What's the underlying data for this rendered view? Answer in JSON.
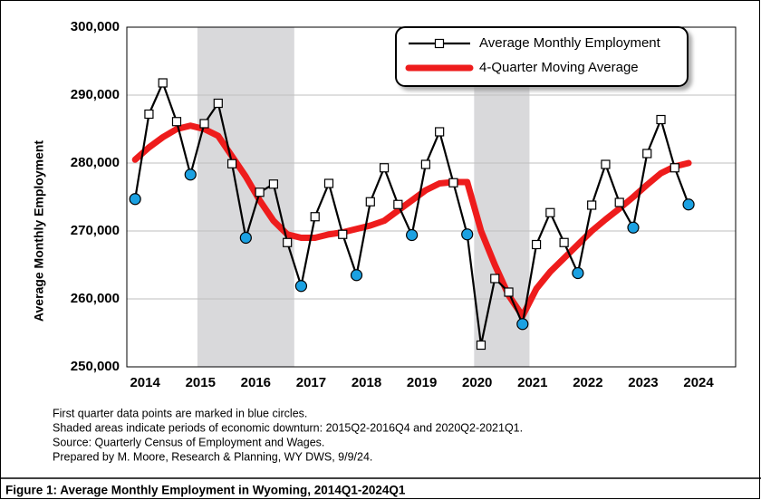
{
  "chart_data": {
    "type": "line",
    "caption": "Figure 1: Average Monthly Employment in Wyoming, 2014Q1-2024Q1",
    "y_label": "Average Monthly Employment",
    "notes": [
      "First quarter data points are marked in blue circles.",
      "Shaded areas indicate periods of economic downturn: 2015Q2-2016Q4 and 2020Q2-2021Q1.",
      "Source: Quarterly Census of Employment and Wages.",
      "Prepared by M. Moore, Research & Planning, WY DWS, 9/9/24."
    ],
    "x": [
      2014,
      2014.25,
      2014.5,
      2014.75,
      2015,
      2015.25,
      2015.5,
      2015.75,
      2016,
      2016.25,
      2016.5,
      2016.75,
      2017,
      2017.25,
      2017.5,
      2017.75,
      2018,
      2018.25,
      2018.5,
      2018.75,
      2019,
      2019.25,
      2019.5,
      2019.75,
      2020,
      2020.25,
      2020.5,
      2020.75,
      2021,
      2021.25,
      2021.5,
      2021.75,
      2022,
      2022.25,
      2022.5,
      2022.75,
      2023,
      2023.25,
      2023.5,
      2023.75,
      2024
    ],
    "series": [
      {
        "name": "Average Monthly Employment",
        "color": "#000000",
        "marker_color": "#ffffff",
        "q1_marker_color": "#1ba1e2",
        "values": [
          274700,
          287200,
          291800,
          286100,
          278300,
          285800,
          288800,
          279900,
          269000,
          275700,
          276900,
          268300,
          261900,
          272100,
          277000,
          269500,
          263500,
          274300,
          279300,
          273900,
          269400,
          279800,
          284600,
          277100,
          269500,
          253200,
          263000,
          261000,
          256300,
          268000,
          272700,
          268300,
          263800,
          273800,
          279800,
          274200,
          270500,
          281400,
          286400,
          279300,
          273900
        ]
      },
      {
        "name": "4-Quarter Moving Average",
        "color": "#ee1c1c",
        "values": [
          280500,
          282300,
          283800,
          285000,
          285500,
          285000,
          284000,
          281000,
          278000,
          274500,
          271500,
          269500,
          269000,
          269000,
          269500,
          269800,
          270300,
          270800,
          271500,
          273000,
          274500,
          276000,
          277000,
          277200,
          277200,
          270000,
          265000,
          260500,
          257500,
          261500,
          264000,
          266000,
          268000,
          270000,
          271700,
          273300,
          275000,
          276800,
          278500,
          279500,
          280000
        ]
      }
    ],
    "shaded": [
      [
        2015.125,
        2016.875
      ],
      [
        2020.125,
        2021.125
      ]
    ],
    "shade_color": "#d9d9db",
    "xlim": [
      2013.85,
      2024.85
    ],
    "xticks": [
      2014,
      2015,
      2016,
      2017,
      2018,
      2019,
      2020,
      2021,
      2022,
      2023,
      2024
    ],
    "ylim": [
      250000,
      300000
    ],
    "yticks": [
      {
        "value": 250000,
        "label": "250,000"
      },
      {
        "value": 260000,
        "label": "260,000"
      },
      {
        "value": 270000,
        "label": "270,000"
      },
      {
        "value": 280000,
        "label": "280,000"
      },
      {
        "value": 290000,
        "label": "290,000"
      },
      {
        "value": 300000,
        "label": "300,000"
      }
    ],
    "grid": true,
    "legend": "top-right"
  }
}
